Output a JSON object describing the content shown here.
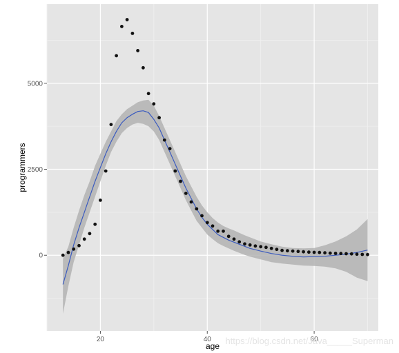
{
  "chart_data": {
    "type": "scatter",
    "title": "",
    "xlabel": "age",
    "ylabel": "programmers",
    "xlim": [
      10,
      72
    ],
    "ylim": [
      -2200,
      7300
    ],
    "x_ticks": [
      20,
      40,
      60
    ],
    "x_tick_labels": [
      "20",
      "40",
      "60"
    ],
    "y_ticks": [
      0,
      2500,
      5000
    ],
    "y_tick_labels": [
      "0",
      "2500",
      "5000"
    ],
    "grid": true,
    "legend": "none",
    "colors": {
      "panel": "#e5e5e5",
      "grid_major": "#ffffff",
      "grid_minor": "#f0f0f0",
      "points": "#111111",
      "smooth_line": "#3b5bbf",
      "confidence_band": "#b3b3b3"
    },
    "series": [
      {
        "kind": "points",
        "x": [
          13,
          14,
          15,
          16,
          17,
          18,
          19,
          20,
          21,
          22,
          23,
          24,
          25,
          26,
          27,
          28,
          29,
          30,
          31,
          32,
          33,
          34,
          35,
          36,
          37,
          38,
          39,
          40,
          41,
          42,
          43,
          44,
          45,
          46,
          47,
          48,
          49,
          50,
          51,
          52,
          53,
          54,
          55,
          56,
          57,
          58,
          59,
          60,
          61,
          62,
          63,
          64,
          65,
          66,
          67,
          68,
          69,
          70
        ],
        "y": [
          0,
          80,
          180,
          280,
          470,
          630,
          900,
          1600,
          2450,
          3800,
          5800,
          6650,
          6850,
          6450,
          5950,
          5450,
          4700,
          4400,
          4000,
          3350,
          3100,
          2450,
          2150,
          1800,
          1550,
          1350,
          1150,
          950,
          850,
          700,
          700,
          550,
          470,
          390,
          330,
          300,
          270,
          250,
          230,
          200,
          170,
          140,
          130,
          120,
          110,
          100,
          90,
          85,
          80,
          70,
          60,
          55,
          50,
          45,
          40,
          30,
          25,
          20
        ]
      },
      {
        "kind": "smooth",
        "x": [
          13,
          14,
          15,
          16,
          17,
          18,
          19,
          20,
          21,
          22,
          23,
          24,
          25,
          26,
          27,
          28,
          29,
          30,
          31,
          32,
          33,
          34,
          35,
          36,
          37,
          38,
          39,
          40,
          41,
          42,
          43,
          44,
          45,
          46,
          47,
          48,
          49,
          50,
          52,
          54,
          56,
          58,
          60,
          62,
          64,
          66,
          68,
          70
        ],
        "y": [
          -850,
          -300,
          300,
          800,
          1250,
          1700,
          2150,
          2550,
          2950,
          3300,
          3600,
          3850,
          4000,
          4100,
          4180,
          4200,
          4150,
          3950,
          3700,
          3350,
          3000,
          2650,
          2300,
          1950,
          1650,
          1350,
          1100,
          900,
          750,
          600,
          520,
          440,
          380,
          320,
          260,
          200,
          160,
          120,
          50,
          0,
          -30,
          -50,
          -40,
          -30,
          0,
          30,
          80,
          150
        ],
        "lower": [
          -1700,
          -900,
          -200,
          300,
          800,
          1250,
          1700,
          2150,
          2600,
          3000,
          3300,
          3550,
          3700,
          3800,
          3850,
          3820,
          3750,
          3600,
          3350,
          3000,
          2650,
          2300,
          1950,
          1600,
          1300,
          1000,
          800,
          600,
          470,
          350,
          270,
          200,
          130,
          70,
          10,
          -40,
          -80,
          -120,
          -200,
          -240,
          -270,
          -300,
          -310,
          -330,
          -380,
          -480,
          -650,
          -750
        ],
        "upper": [
          -100,
          250,
          800,
          1300,
          1750,
          2150,
          2600,
          2950,
          3300,
          3600,
          3900,
          4100,
          4250,
          4350,
          4450,
          4500,
          4520,
          4350,
          4050,
          3700,
          3350,
          3000,
          2650,
          2300,
          2000,
          1700,
          1450,
          1250,
          1080,
          950,
          850,
          780,
          720,
          650,
          580,
          520,
          460,
          400,
          320,
          250,
          210,
          200,
          210,
          290,
          400,
          550,
          750,
          1050
        ]
      }
    ]
  },
  "watermark": "https://blog.csdn.net/Java_____Superman"
}
